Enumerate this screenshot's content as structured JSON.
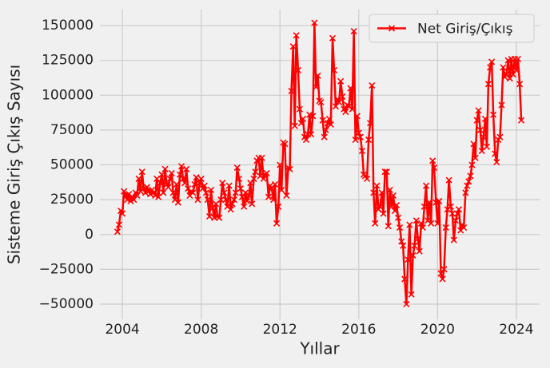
{
  "chart_data": {
    "type": "line",
    "x_label": "Yıllar",
    "y_label": "Sisteme Giriş Çıkış Sayısı",
    "xlim": [
      2002.86,
      2025.18
    ],
    "xticks": [
      2004,
      2008,
      2012,
      2016,
      2020,
      2024
    ],
    "ylim": [
      -60900,
      161500
    ],
    "yticks": [
      {
        "value": -50000,
        "label": "−50000"
      },
      {
        "value": -25000,
        "label": "−25000"
      },
      0,
      25000,
      50000,
      75000,
      100000,
      125000,
      150000
    ],
    "grid": true,
    "legend": "upper right",
    "x": [
      2003.75,
      2003.83,
      2003.92,
      2004,
      2004.08,
      2004.17,
      2004.25,
      2004.33,
      2004.42,
      2004.5,
      2004.58,
      2004.67,
      2004.75,
      2004.83,
      2004.92,
      2005,
      2005.08,
      2005.17,
      2005.25,
      2005.33,
      2005.42,
      2005.5,
      2005.58,
      2005.67,
      2005.75,
      2005.83,
      2005.92,
      2006,
      2006.08,
      2006.17,
      2006.25,
      2006.33,
      2006.42,
      2006.5,
      2006.58,
      2006.67,
      2006.75,
      2006.83,
      2006.92,
      2007,
      2007.08,
      2007.17,
      2007.25,
      2007.33,
      2007.42,
      2007.5,
      2007.58,
      2007.67,
      2007.75,
      2007.83,
      2007.92,
      2008,
      2008.08,
      2008.17,
      2008.25,
      2008.33,
      2008.42,
      2008.5,
      2008.58,
      2008.67,
      2008.75,
      2008.83,
      2008.92,
      2009,
      2009.08,
      2009.17,
      2009.25,
      2009.33,
      2009.42,
      2009.5,
      2009.58,
      2009.67,
      2009.75,
      2009.83,
      2009.92,
      2010,
      2010.08,
      2010.17,
      2010.25,
      2010.33,
      2010.42,
      2010.5,
      2010.58,
      2010.67,
      2010.75,
      2010.83,
      2010.92,
      2011,
      2011.08,
      2011.17,
      2011.25,
      2011.33,
      2011.42,
      2011.5,
      2011.58,
      2011.67,
      2011.75,
      2011.83,
      2011.92,
      2012,
      2012.08,
      2012.17,
      2012.25,
      2012.33,
      2012.42,
      2012.5,
      2012.58,
      2012.67,
      2012.75,
      2012.83,
      2012.92,
      2013,
      2013.08,
      2013.17,
      2013.25,
      2013.33,
      2013.42,
      2013.5,
      2013.58,
      2013.67,
      2013.75,
      2013.83,
      2013.92,
      2014,
      2014.08,
      2014.17,
      2014.25,
      2014.33,
      2014.42,
      2014.5,
      2014.58,
      2014.67,
      2014.75,
      2014.83,
      2014.92,
      2015,
      2015.08,
      2015.17,
      2015.25,
      2015.33,
      2015.42,
      2015.5,
      2015.58,
      2015.67,
      2015.75,
      2015.83,
      2015.92,
      2016,
      2016.08,
      2016.17,
      2016.25,
      2016.33,
      2016.42,
      2016.5,
      2016.58,
      2016.67,
      2016.75,
      2016.83,
      2016.92,
      2017,
      2017.08,
      2017.17,
      2017.25,
      2017.33,
      2017.42,
      2017.5,
      2017.58,
      2017.67,
      2017.75,
      2017.83,
      2017.92,
      2018,
      2018.08,
      2018.17,
      2018.25,
      2018.33,
      2018.42,
      2018.5,
      2018.58,
      2018.67,
      2018.75,
      2018.83,
      2018.92,
      2019,
      2019.08,
      2019.17,
      2019.25,
      2019.33,
      2019.42,
      2019.5,
      2019.58,
      2019.67,
      2019.75,
      2019.83,
      2019.92,
      2020,
      2020.08,
      2020.17,
      2020.25,
      2020.33,
      2020.42,
      2020.5,
      2020.58,
      2020.67,
      2020.75,
      2020.83,
      2020.92,
      2021,
      2021.08,
      2021.17,
      2021.25,
      2021.33,
      2021.42,
      2021.5,
      2021.58,
      2021.67,
      2021.75,
      2021.83,
      2021.92,
      2022,
      2022.08,
      2022.17,
      2022.25,
      2022.33,
      2022.42,
      2022.5,
      2022.58,
      2022.67,
      2022.75,
      2022.83,
      2022.92,
      2023,
      2023.08,
      2023.17,
      2023.25,
      2023.33,
      2023.42,
      2023.5,
      2023.58,
      2023.67,
      2023.75,
      2023.83,
      2023.92,
      2024,
      2024.08,
      2024.17,
      2024.25
    ],
    "series": [
      {
        "name": "Net Giriş/Çıkış",
        "color": "#ff0000",
        "values": [
          2000,
          7000,
          17000,
          15000,
          31000,
          28000,
          25000,
          29000,
          24000,
          27000,
          25000,
          30000,
          28000,
          40000,
          31000,
          45000,
          33000,
          30000,
          34000,
          31000,
          29000,
          32000,
          30000,
          28000,
          40000,
          27000,
          37000,
          43000,
          30000,
          47000,
          36000,
          34000,
          40000,
          44000,
          30000,
          25000,
          36000,
          23000,
          43000,
          49000,
          40000,
          37000,
          47000,
          33000,
          28000,
          31000,
          30000,
          36000,
          41000,
          25000,
          37000,
          40000,
          33000,
          35000,
          30000,
          25000,
          13000,
          32000,
          19000,
          12000,
          22000,
          13000,
          12000,
          25000,
          37000,
          30000,
          25000,
          20000,
          35000,
          18000,
          22000,
          25000,
          30000,
          48000,
          40000,
          33000,
          27000,
          20000,
          30000,
          24000,
          28000,
          37000,
          22000,
          40000,
          45000,
          53000,
          55000,
          42000,
          55000,
          40000,
          43000,
          44000,
          27000,
          35000,
          33000,
          25000,
          36000,
          8000,
          20000,
          50000,
          32000,
          66000,
          65000,
          28000,
          48000,
          47000,
          103000,
          135000,
          78000,
          143000,
          118000,
          90000,
          80000,
          83000,
          70000,
          68000,
          72000,
          86000,
          72000,
          85000,
          152000,
          106000,
          114000,
          96000,
          95000,
          82000,
          70000,
          75000,
          80000,
          83000,
          79000,
          141000,
          118000,
          92000,
          97000,
          95000,
          110000,
          99000,
          90000,
          88000,
          93000,
          92000,
          105000,
          90000,
          146000,
          68000,
          85000,
          73000,
          70000,
          60000,
          43000,
          42000,
          40000,
          68000,
          80000,
          107000,
          30000,
          8000,
          35000,
          18000,
          20000,
          30000,
          15000,
          45000,
          45000,
          6000,
          32000,
          20000,
          28000,
          17000,
          21000,
          12000,
          5000,
          -5000,
          -8000,
          -32000,
          -50000,
          -18000,
          7000,
          -43000,
          -15000,
          -8000,
          10000,
          -3000,
          -12000,
          8000,
          5000,
          20000,
          35000,
          10000,
          23000,
          8000,
          53000,
          48000,
          23000,
          8000,
          24000,
          -28000,
          -32000,
          -25000,
          5000,
          18000,
          39000,
          20000,
          15000,
          -4000,
          10000,
          15000,
          18000,
          3000,
          7000,
          5000,
          30000,
          35000,
          38000,
          42000,
          50000,
          65000,
          55000,
          82000,
          89000,
          75000,
          60000,
          70000,
          83000,
          63000,
          108000,
          120000,
          124000,
          86000,
          58000,
          52000,
          68000,
          70000,
          93000,
          120000,
          113000,
          115000,
          125000,
          112000,
          126000,
          115000,
          126000,
          118000,
          126000,
          108000,
          82000
        ]
      }
    ]
  }
}
